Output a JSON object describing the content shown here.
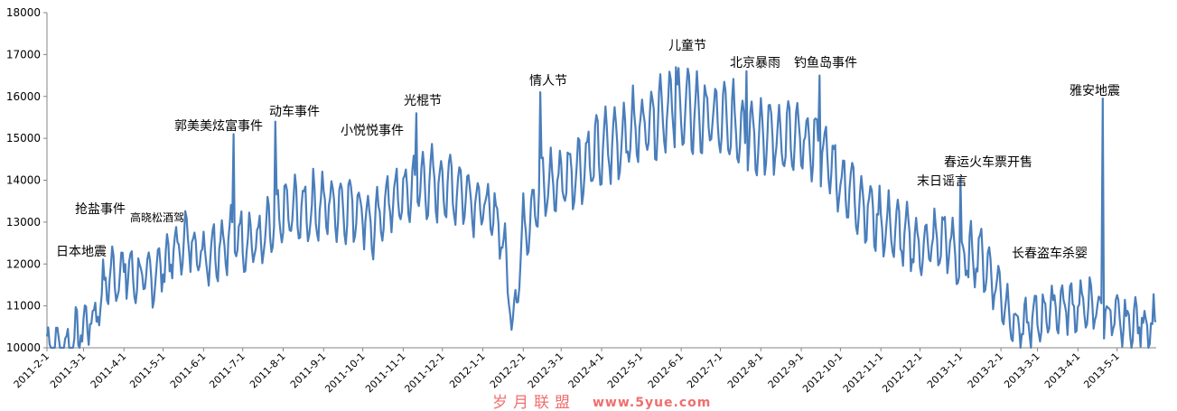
{
  "chart_data": {
    "type": "line",
    "ylim": [
      10000,
      18000
    ],
    "yticks": [
      10000,
      11000,
      12000,
      13000,
      14000,
      15000,
      16000,
      17000,
      18000
    ],
    "grid": false,
    "legend": "none",
    "line_color": "#4a7ebb",
    "x_tick_labels": [
      "2011-2-1",
      "2011-3-1",
      "2011-4-1",
      "2011-5-1",
      "2011-6-1",
      "2011-7-1",
      "2011-8-1",
      "2011-9-1",
      "2011-10-1",
      "2011-11-1",
      "2011-12-1",
      "2012-1-1",
      "2012-2-1",
      "2012-3-1",
      "2012-4-1",
      "2012-5-1",
      "2012-6-1",
      "2012-7-1",
      "2012-8-1",
      "2012-9-1",
      "2012-10-1",
      "2012-11-1",
      "2012-12-1",
      "2013-1-1",
      "2013-2-1",
      "2013-3-1",
      "2013-4-1",
      "2013-5-1"
    ],
    "x_start": "2011-02-01",
    "x_end": "2013-05-31",
    "anchors": [
      [
        "2011-02-01",
        10050
      ],
      [
        "2011-02-15",
        10000
      ],
      [
        "2011-03-01",
        10500
      ],
      [
        "2011-03-11",
        10900
      ],
      [
        "2011-03-20",
        11700
      ],
      [
        "2011-04-01",
        11800
      ],
      [
        "2011-04-20",
        11600
      ],
      [
        "2011-05-01",
        12000
      ],
      [
        "2011-05-20",
        12600
      ],
      [
        "2011-06-01",
        12200
      ],
      [
        "2011-06-24",
        12700
      ],
      [
        "2011-07-01",
        12600
      ],
      [
        "2011-07-15",
        12500
      ],
      [
        "2011-08-01",
        13200
      ],
      [
        "2011-08-20",
        13300
      ],
      [
        "2011-09-01",
        13400
      ],
      [
        "2011-09-15",
        13400
      ],
      [
        "2011-10-01",
        13300
      ],
      [
        "2011-10-10",
        12800
      ],
      [
        "2011-10-20",
        13500
      ],
      [
        "2011-11-01",
        13600
      ],
      [
        "2011-11-11",
        13900
      ],
      [
        "2011-12-01",
        13900
      ],
      [
        "2011-12-20",
        13700
      ],
      [
        "2012-01-01",
        13400
      ],
      [
        "2012-01-15",
        12900
      ],
      [
        "2012-01-24",
        10600
      ],
      [
        "2012-02-01",
        12800
      ],
      [
        "2012-02-14",
        13800
      ],
      [
        "2012-03-01",
        14000
      ],
      [
        "2012-04-01",
        14700
      ],
      [
        "2012-05-01",
        15300
      ],
      [
        "2012-05-20",
        15700
      ],
      [
        "2012-06-01",
        15700
      ],
      [
        "2012-07-01",
        15400
      ],
      [
        "2012-07-21",
        15200
      ],
      [
        "2012-08-01",
        15100
      ],
      [
        "2012-09-01",
        14900
      ],
      [
        "2012-09-15",
        14800
      ],
      [
        "2012-10-01",
        14000
      ],
      [
        "2012-11-01",
        13000
      ],
      [
        "2012-12-01",
        12400
      ],
      [
        "2012-12-21",
        12600
      ],
      [
        "2013-01-01",
        12000
      ],
      [
        "2013-01-15",
        12300
      ],
      [
        "2013-02-01",
        11300
      ],
      [
        "2013-02-15",
        10400
      ],
      [
        "2013-03-01",
        10700
      ],
      [
        "2013-03-15",
        11000
      ],
      [
        "2013-04-01",
        11000
      ],
      [
        "2013-04-20",
        10900
      ],
      [
        "2013-05-01",
        10600
      ],
      [
        "2013-05-31",
        10600
      ]
    ],
    "spikes": [
      [
        "2011-03-09",
        10900
      ],
      [
        "2011-04-02",
        12000
      ],
      [
        "2011-06-24",
        15100
      ],
      [
        "2011-07-26",
        15400
      ],
      [
        "2011-11-11",
        15600
      ],
      [
        "2012-02-14",
        16100
      ],
      [
        "2012-05-28",
        16700
      ],
      [
        "2012-07-21",
        16600
      ],
      [
        "2012-09-15",
        16500
      ],
      [
        "2013-01-01",
        14050
      ],
      [
        "2013-04-20",
        15950
      ]
    ],
    "annotations": [
      {
        "label": "日本地震",
        "date": "2011-03-11"
      },
      {
        "label": "抢盐事件",
        "date": "2011-03-17"
      },
      {
        "label": "高晓松酒驾",
        "date": "2011-05-09"
      },
      {
        "label": "郭美美炫富事件",
        "date": "2011-06-21"
      },
      {
        "label": "动车事件",
        "date": "2011-07-23"
      },
      {
        "label": "小悦悦事件",
        "date": "2011-10-13"
      },
      {
        "label": "光棍节",
        "date": "2011-11-11"
      },
      {
        "label": "情人节",
        "date": "2012-02-14"
      },
      {
        "label": "儿童节",
        "date": "2012-06-01"
      },
      {
        "label": "北京暴雨",
        "date": "2012-07-21"
      },
      {
        "label": "钓鱼岛事件",
        "date": "2012-09-15"
      },
      {
        "label": "末日谣言",
        "date": "2012-12-21"
      },
      {
        "label": "春运火车票开售",
        "date": "2013-01-01"
      },
      {
        "label": "长春盗车杀婴",
        "date": "2013-03-04"
      },
      {
        "label": "雅安地震",
        "date": "2013-04-20"
      }
    ]
  },
  "watermark": {
    "text": "岁月联盟",
    "url": "www.5yue.com"
  }
}
